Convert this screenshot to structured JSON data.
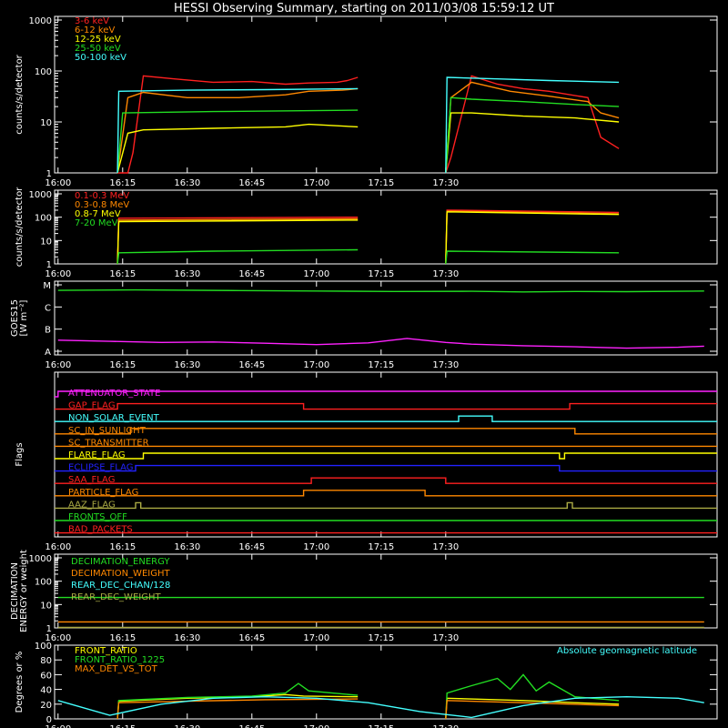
{
  "title": "HESSI Observing Summary, starting on 2011/03/08 15:59:12 UT",
  "colors": {
    "background": "#000000",
    "axes": "#ffffff",
    "red": "#ff2020",
    "orange": "#ff8800",
    "yellow": "#ffff00",
    "green": "#22dd22",
    "cyan": "#44ffff",
    "magenta": "#ff22ff",
    "blue": "#2222ff",
    "olive": "#aaaa44"
  },
  "time_ticks": [
    "16:00",
    "16:15",
    "16:30",
    "16:45",
    "17:00",
    "17:15",
    "17:30"
  ],
  "chart_data": [
    {
      "id": "panel1",
      "type": "line",
      "ylabel": "counts/s/detector",
      "yscale": "log",
      "ylim": [
        1,
        1000
      ],
      "yticks": [
        "1",
        "10",
        "100",
        "1000"
      ],
      "legend": [
        "3-6 keV",
        "6-12 keV",
        "12-25 keV",
        "25-50 keV",
        "50-100 keV"
      ],
      "legend_colors": [
        "#ff2020",
        "#ff8800",
        "#ffff00",
        "#22dd22",
        "#44ffff"
      ],
      "series": [
        {
          "color": "#ff2020",
          "segments": [
            {
              "x": [
                16.23,
                16.27,
                16.29,
                16.33,
                16.45,
                16.6,
                16.75,
                16.88,
                16.97,
                17.08,
                17.12,
                17.16
              ],
              "y": [
                1,
                1,
                2.5,
                80,
                70,
                60,
                62,
                55,
                58,
                60,
                65,
                75
              ]
            },
            {
              "x": [
                17.5,
                17.52,
                17.6,
                17.7,
                17.8,
                17.9,
                18.05,
                18.1,
                18.17
              ],
              "y": [
                1,
                2,
                80,
                55,
                45,
                40,
                30,
                5,
                3
              ]
            }
          ]
        },
        {
          "color": "#ff8800",
          "segments": [
            {
              "x": [
                16.23,
                16.27,
                16.33,
                16.5,
                16.7,
                16.88,
                16.97,
                17.1,
                17.16
              ],
              "y": [
                1,
                30,
                38,
                30,
                30,
                34,
                40,
                42,
                45
              ]
            },
            {
              "x": [
                17.5,
                17.52,
                17.6,
                17.75,
                17.9,
                18.05,
                18.1,
                18.17
              ],
              "y": [
                1,
                30,
                60,
                40,
                32,
                25,
                15,
                12
              ]
            }
          ]
        },
        {
          "color": "#ffff00",
          "segments": [
            {
              "x": [
                16.23,
                16.27,
                16.33,
                16.6,
                16.88,
                16.97,
                17.16
              ],
              "y": [
                1,
                6,
                7,
                7.5,
                8,
                9,
                8
              ]
            },
            {
              "x": [
                17.5,
                17.52,
                17.6,
                17.8,
                18.0,
                18.17
              ],
              "y": [
                1,
                15,
                15,
                13,
                12,
                10
              ]
            }
          ]
        },
        {
          "color": "#22dd22",
          "segments": [
            {
              "x": [
                16.23,
                16.25,
                16.6,
                17.16
              ],
              "y": [
                1,
                15,
                16,
                17
              ]
            },
            {
              "x": [
                17.5,
                17.52,
                17.6,
                17.8,
                18.0,
                18.17
              ],
              "y": [
                1,
                30,
                28,
                25,
                22,
                20
              ]
            }
          ]
        },
        {
          "color": "#44ffff",
          "segments": [
            {
              "x": [
                16.23,
                16.235,
                16.5,
                16.8,
                17.16
              ],
              "y": [
                1,
                40,
                42,
                43,
                45
              ]
            },
            {
              "x": [
                17.5,
                17.505,
                17.7,
                17.9,
                18.17
              ],
              "y": [
                1,
                75,
                70,
                65,
                60
              ]
            }
          ]
        }
      ]
    },
    {
      "id": "panel2",
      "type": "line",
      "ylabel": "counts/s/detector",
      "yscale": "log",
      "ylim": [
        1,
        1000
      ],
      "yticks": [
        "1",
        "10",
        "100",
        "1000"
      ],
      "legend": [
        "0.1-0.3 MeV",
        "0.3-0.8 MeV",
        "0.8-7 MeV",
        "7-20 MeV"
      ],
      "legend_colors": [
        "#ff2020",
        "#ff8800",
        "#ffff00",
        "#22dd22"
      ],
      "series": [
        {
          "color": "#ff2020",
          "segments": [
            {
              "x": [
                16.23,
                16.235,
                17.16
              ],
              "y": [
                1,
                90,
                100
              ]
            },
            {
              "x": [
                17.5,
                17.505,
                18.17
              ],
              "y": [
                1,
                200,
                160
              ]
            }
          ]
        },
        {
          "color": "#ff8800",
          "segments": [
            {
              "x": [
                16.23,
                16.235,
                17.16
              ],
              "y": [
                1,
                75,
                85
              ]
            },
            {
              "x": [
                17.5,
                17.505,
                18.17
              ],
              "y": [
                1,
                180,
                140
              ]
            }
          ]
        },
        {
          "color": "#ffff00",
          "segments": [
            {
              "x": [
                16.23,
                16.235,
                17.16
              ],
              "y": [
                1,
                65,
                75
              ]
            },
            {
              "x": [
                17.5,
                17.505,
                18.17
              ],
              "y": [
                1,
                170,
                130
              ]
            }
          ]
        },
        {
          "color": "#22dd22",
          "segments": [
            {
              "x": [
                16.23,
                16.235,
                16.6,
                17.16
              ],
              "y": [
                1,
                3,
                3.5,
                4
              ]
            },
            {
              "x": [
                17.5,
                17.505,
                18.17
              ],
              "y": [
                1,
                3.5,
                3
              ]
            }
          ]
        }
      ]
    },
    {
      "id": "panel3",
      "type": "line",
      "ylabel": "GOES15",
      "ylabel2": "[W m⁻²]",
      "ylevels": [
        "A",
        "B",
        "C",
        "M"
      ],
      "series": [
        {
          "color": "#22dd22",
          "x": [
            16.0,
            16.3,
            16.7,
            17.0,
            17.3,
            17.6,
            17.8,
            18.0,
            18.2,
            18.5
          ],
          "y": [
            2.75,
            2.77,
            2.74,
            2.72,
            2.7,
            2.71,
            2.68,
            2.7,
            2.69,
            2.72
          ]
        },
        {
          "color": "#ff22ff",
          "x": [
            16.0,
            16.2,
            16.4,
            16.6,
            16.8,
            17.0,
            17.2,
            17.35,
            17.5,
            17.6,
            17.8,
            18.0,
            18.2,
            18.4,
            18.5
          ],
          "y": [
            0.5,
            0.45,
            0.4,
            0.42,
            0.36,
            0.3,
            0.38,
            0.58,
            0.4,
            0.32,
            0.25,
            0.2,
            0.14,
            0.18,
            0.23
          ]
        }
      ]
    },
    {
      "id": "panel4",
      "type": "line",
      "ylabel": "Flags",
      "flags": [
        {
          "name": "ATTENUATOR_STATE",
          "color": "#ff22ff",
          "changes": [
            16.0
          ]
        },
        {
          "name": "GAP_FLAG",
          "color": "#ff2020",
          "changes": [
            16.23,
            16.95,
            17.98
          ]
        },
        {
          "name": "NON_SOLAR_EVENT",
          "color": "#44ffff",
          "changes": [
            17.55,
            17.68
          ]
        },
        {
          "name": "SC_IN_SUNLIGHT",
          "color": "#ff8800",
          "changes": [
            16.28,
            18.0
          ]
        },
        {
          "name": "SC_TRANSMITTER",
          "color": "#ff8800",
          "changes": []
        },
        {
          "name": "FLARE_FLAG",
          "color": "#ffff00",
          "changes": [
            16.33,
            17.94,
            17.96
          ]
        },
        {
          "name": "ECLIPSE_FLAG",
          "color": "#2222ff",
          "changes": [
            16.3,
            17.94
          ]
        },
        {
          "name": "SAA_FLAG",
          "color": "#ff2020",
          "changes": [
            16.98,
            17.5
          ]
        },
        {
          "name": "PARTICLE_FLAG",
          "color": "#ff8800",
          "changes": [
            16.95,
            17.42
          ]
        },
        {
          "name": "AAZ_FLAG",
          "color": "#aaaa44",
          "changes": [
            16.3,
            16.32,
            17.97,
            17.99
          ]
        },
        {
          "name": "FRONTS_OFF",
          "color": "#22dd22",
          "changes": []
        },
        {
          "name": "BAD_PACKETS",
          "color": "#ff2020",
          "changes": []
        }
      ]
    },
    {
      "id": "panel5",
      "type": "line",
      "ylabel": "DECIMATION",
      "ylabel2": "ENERGY or weight",
      "yscale": "log",
      "ylim": [
        1,
        1000
      ],
      "yticks": [
        "1",
        "10",
        "100",
        "1000"
      ],
      "legend": [
        "DECIMATION_ENERGY",
        "DECIMATION_WEIGHT",
        "REAR_DEC_CHAN/128",
        "REAR_DEC_WEIGHT"
      ],
      "legend_colors": [
        "#22dd22",
        "#ff8800",
        "#44ffff",
        "#aaaa44"
      ],
      "series": [
        {
          "color": "#22dd22",
          "x": [
            16.0,
            18.5
          ],
          "y": [
            20,
            20
          ]
        },
        {
          "color": "#ff8800",
          "x": [
            16.0,
            18.5
          ],
          "y": [
            1.8,
            1.8
          ]
        },
        {
          "color": "#aaaa44",
          "x": [
            16.0,
            18.5
          ],
          "y": [
            1.05,
            1.05
          ]
        }
      ]
    },
    {
      "id": "panel6",
      "type": "line",
      "ylabel": "Degrees or %",
      "ylim": [
        0,
        100
      ],
      "yticks": [
        "0",
        "20",
        "40",
        "60",
        "80",
        "100"
      ],
      "legend": [
        "FRONT_RATIO",
        "FRONT_RATIO_1225",
        "MAX_DET_VS_TOT"
      ],
      "legend_colors": [
        "#ffff00",
        "#22dd22",
        "#ff8800"
      ],
      "annotation": "Absolute geomagnetic latitude",
      "series": [
        {
          "color": "#ffff00",
          "segments": [
            {
              "x": [
                16.23,
                16.235,
                16.5,
                16.75,
                16.88,
                16.95,
                17.16
              ],
              "y": [
                0,
                24,
                28,
                30,
                33,
                31,
                30
              ]
            },
            {
              "x": [
                17.5,
                17.505,
                17.8,
                18.0,
                18.17
              ],
              "y": [
                0,
                28,
                25,
                22,
                20
              ]
            }
          ]
        },
        {
          "color": "#22dd22",
          "segments": [
            {
              "x": [
                16.23,
                16.235,
                16.5,
                16.75,
                16.88,
                16.93,
                16.97,
                17.16
              ],
              "y": [
                0,
                25,
                29,
                31,
                35,
                48,
                38,
                32
              ]
            },
            {
              "x": [
                17.5,
                17.505,
                17.6,
                17.7,
                17.75,
                17.8,
                17.85,
                17.9,
                18.0,
                18.17
              ],
              "y": [
                0,
                35,
                45,
                55,
                40,
                60,
                38,
                50,
                30,
                25
              ]
            }
          ]
        },
        {
          "color": "#ff8800",
          "segments": [
            {
              "x": [
                16.23,
                16.235,
                16.5,
                16.8,
                17.16
              ],
              "y": [
                0,
                22,
                24,
                26,
                27
              ]
            },
            {
              "x": [
                17.5,
                17.505,
                17.8,
                18.17
              ],
              "y": [
                0,
                25,
                22,
                18
              ]
            }
          ]
        },
        {
          "color": "#44ffff",
          "x": [
            16.0,
            16.2,
            16.4,
            16.6,
            16.8,
            17.0,
            17.2,
            17.4,
            17.6,
            17.8,
            18.0,
            18.2,
            18.4,
            18.5
          ],
          "y": [
            25,
            5,
            20,
            28,
            30,
            28,
            22,
            10,
            2,
            18,
            28,
            30,
            28,
            22
          ]
        }
      ]
    }
  ]
}
